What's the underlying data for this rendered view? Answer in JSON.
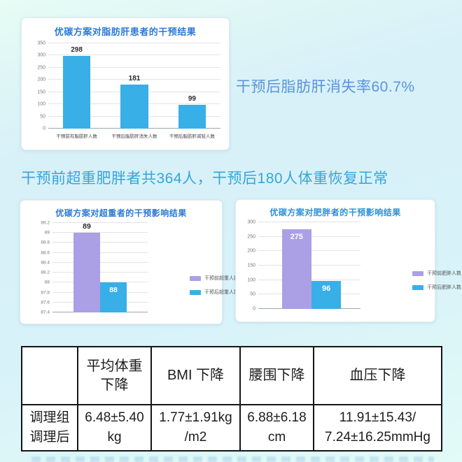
{
  "page": {
    "fatty_liver_note": "干预后脂肪肝消失率60.7%",
    "middle_heading": "干预前超重肥胖者共364人，干预后180人体重恢复正常"
  },
  "colors": {
    "bar_blue": "#38afe6",
    "bar_purple": "#ab9fe6",
    "title_blue": "#2c7ad4",
    "note_blue": "#5a95dc",
    "heading_cyan": "#35a5da"
  },
  "chart_data": [
    {
      "type": "bar",
      "title": "优碳方案对脂肪肝患者的干预结果",
      "categories": [
        "干预前有脂肪肝人数",
        "干预后脂肪肝消失人数",
        "干预后脂肪肝减轻人数"
      ],
      "values": [
        298,
        181,
        99
      ],
      "value_labels": [
        "298",
        "181",
        "99"
      ],
      "bar_colors": [
        "#38afe6",
        "#38afe6",
        "#38afe6"
      ],
      "ylim": [
        0,
        350
      ],
      "ytick_step": 50,
      "grid": true,
      "legend": null,
      "legend_position": null
    },
    {
      "type": "bar",
      "title": "优碳方案对超重者的干预影响结果",
      "categories": [
        "干预前超重人数",
        "干预后超重人数"
      ],
      "values": [
        89,
        88
      ],
      "value_labels": [
        "89",
        "88"
      ],
      "bar_colors": [
        "#ab9fe6",
        "#38afe6"
      ],
      "ylim": [
        87.4,
        89.2
      ],
      "ytick_step": 0.2,
      "grid": true,
      "legend": [
        "干预前超重人数",
        "干预后超重人数"
      ],
      "legend_position": "right"
    },
    {
      "type": "bar",
      "title": "优碳方案对肥胖者的干预影响结果",
      "categories": [
        "干预前肥胖人数",
        "干预后肥胖人数"
      ],
      "values": [
        275,
        96
      ],
      "value_labels": [
        "275",
        "96"
      ],
      "bar_colors": [
        "#ab9fe6",
        "#38afe6"
      ],
      "ylim": [
        0,
        300
      ],
      "ytick_step": 50,
      "grid": true,
      "legend": [
        "干预前肥胖人数",
        "干预后肥胖人数"
      ],
      "legend_position": "right"
    }
  ],
  "table": {
    "headers": [
      "",
      "平均体重\n下降",
      "BMI 下降",
      "腰围下降",
      "血压下降"
    ],
    "rows": [
      [
        "调理组\n调理后",
        "6.48±5.40\nkg",
        "1.77±1.91kg\n/m2",
        "6.88±6.18\ncm",
        "11.91±15.43/\n7.24±16.25mmHg"
      ]
    ]
  }
}
